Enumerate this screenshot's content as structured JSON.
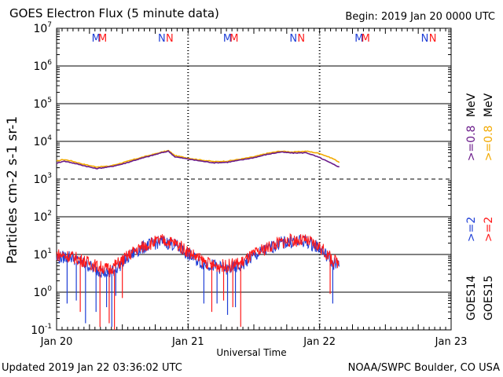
{
  "header": {
    "title": "GOES Electron Flux (5 minute data)",
    "begin": "Begin: 2019 Jan 20 0000 UTC"
  },
  "footer": {
    "updated": "Updated 2019 Jan 22 03:36:02 UTC",
    "credit": "NOAA/SWPC Boulder, CO USA"
  },
  "legend": {
    "goes14": "GOES14",
    "goes15": "GOES15",
    "ge2_a": ">=2",
    "ge2_b": ">=2",
    "ge08_a": ">=0.8",
    "ge08_b": ">=0.8",
    "mev_a": "MeV",
    "mev_b": "MeV"
  },
  "colors": {
    "goes14_ge2": "#1f3fd6",
    "goes15_ge2": "#ff1a1a",
    "goes14_ge08": "#6a1b8a",
    "goes15_ge08": "#f2a900",
    "marker_m1": "#1f3fd6",
    "marker_m2": "#ff1a1a"
  },
  "chart_data": {
    "type": "line",
    "title": "GOES Electron Flux (5 minute data)",
    "xlabel": "Universal Time",
    "ylabel": "Particles cm-2 s-1 sr-1",
    "yscale": "log",
    "ylim_exp": [
      -1,
      7
    ],
    "xlim_days": [
      0,
      3
    ],
    "x_ticks": [
      "Jan 20",
      "Jan 21",
      "Jan 22",
      "Jan 23"
    ],
    "y_tick_exponents": [
      -1,
      0,
      1,
      2,
      3,
      4,
      5,
      6,
      7
    ],
    "threshold_exponent": 3,
    "day_markers": [
      "M",
      "M",
      "N",
      "N"
    ],
    "series": [
      {
        "name": "GOES15 >=0.8 MeV",
        "color_key": "goes15_ge08",
        "x": [
          0,
          0.05,
          0.1,
          0.2,
          0.3,
          0.4,
          0.5,
          0.6,
          0.7,
          0.8,
          0.85,
          0.9,
          1.0,
          1.1,
          1.2,
          1.3,
          1.4,
          1.5,
          1.6,
          1.7,
          1.8,
          1.9,
          2.0,
          2.1,
          2.15
        ],
        "y": [
          3000,
          3300,
          3100,
          2500,
          2100,
          2200,
          2700,
          3400,
          4200,
          5200,
          5700,
          4200,
          3600,
          3200,
          2900,
          3000,
          3400,
          3900,
          4800,
          5500,
          5200,
          5500,
          4800,
          3500,
          2800
        ]
      },
      {
        "name": "GOES14 >=0.8 MeV",
        "color_key": "goes14_ge08",
        "x": [
          0,
          0.05,
          0.1,
          0.2,
          0.3,
          0.4,
          0.5,
          0.6,
          0.7,
          0.8,
          0.85,
          0.9,
          1.0,
          1.1,
          1.2,
          1.3,
          1.4,
          1.5,
          1.6,
          1.7,
          1.8,
          1.9,
          2.0,
          2.1,
          2.15
        ],
        "y": [
          2600,
          3000,
          2800,
          2300,
          1900,
          2100,
          2500,
          3200,
          4000,
          5000,
          5500,
          3900,
          3400,
          3000,
          2700,
          2800,
          3200,
          3700,
          4500,
          5200,
          4900,
          5000,
          3700,
          2500,
          2100
        ]
      },
      {
        "name": "GOES14 >=2 MeV",
        "color_key": "goes14_ge2",
        "x": [
          0,
          0.1,
          0.2,
          0.3,
          0.4,
          0.5,
          0.6,
          0.7,
          0.8,
          0.9,
          1.0,
          1.1,
          1.2,
          1.3,
          1.4,
          1.5,
          1.6,
          1.7,
          1.8,
          1.9,
          2.0,
          2.1,
          2.15
        ],
        "y": [
          8,
          9,
          6,
          4,
          3,
          6,
          12,
          18,
          22,
          18,
          10,
          6,
          5,
          4,
          5,
          9,
          14,
          20,
          22,
          22,
          15,
          6,
          5
        ],
        "dips_x": [
          0.08,
          0.15,
          0.22,
          0.3,
          0.38,
          0.42,
          0.45,
          1.12,
          1.22,
          1.3,
          1.36,
          2.1
        ],
        "dips_y": [
          0.5,
          0.6,
          0.15,
          0.3,
          0.4,
          0.12,
          0.8,
          0.5,
          0.5,
          0.25,
          0.4,
          0.5
        ]
      },
      {
        "name": "GOES15 >=2 MeV",
        "color_key": "goes15_ge2",
        "x": [
          0,
          0.1,
          0.2,
          0.3,
          0.4,
          0.5,
          0.6,
          0.7,
          0.8,
          0.9,
          1.0,
          1.1,
          1.2,
          1.3,
          1.4,
          1.5,
          1.6,
          1.7,
          1.8,
          1.9,
          2.0,
          2.1,
          2.15
        ],
        "y": [
          10,
          9,
          7,
          5,
          4,
          7,
          13,
          19,
          24,
          20,
          12,
          7,
          5,
          5,
          6,
          10,
          15,
          21,
          24,
          23,
          16,
          7,
          6
        ],
        "dips_x": [
          0.18,
          0.33,
          0.4,
          0.44,
          0.5,
          1.18,
          1.27,
          1.34,
          1.4,
          2.08
        ],
        "dips_y": [
          0.3,
          0.12,
          0.15,
          0.1,
          0.7,
          0.3,
          0.6,
          0.4,
          0.12,
          0.9
        ]
      }
    ]
  }
}
